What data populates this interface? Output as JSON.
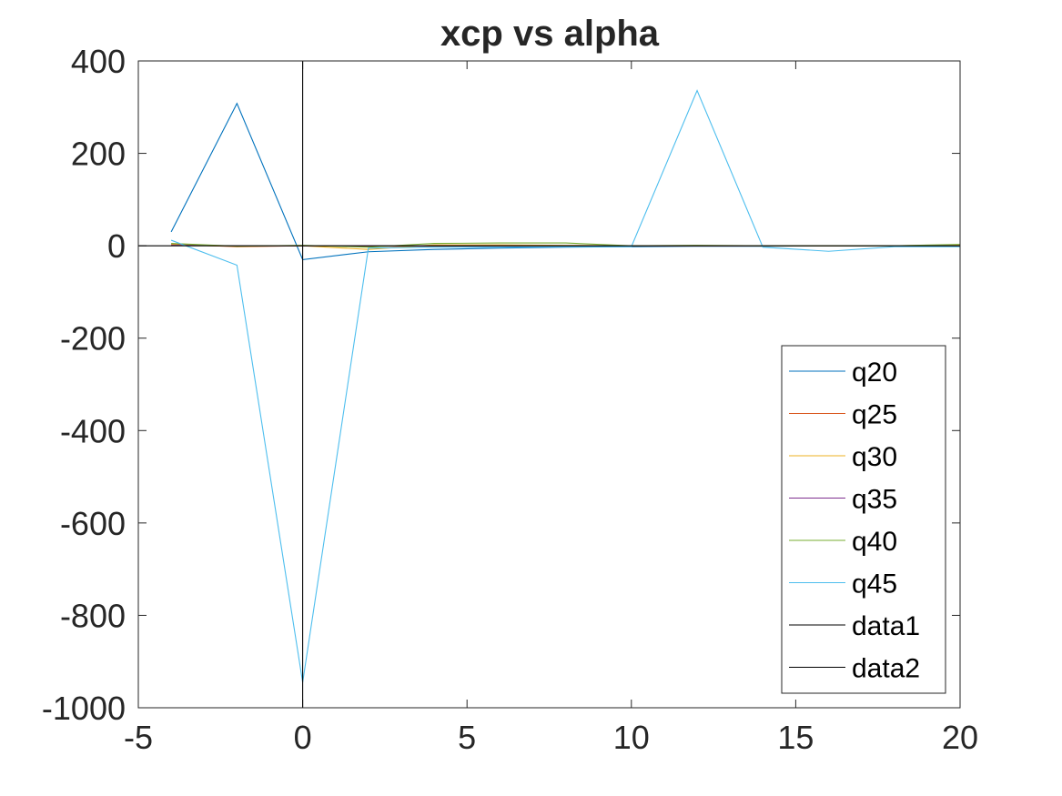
{
  "chart_data": {
    "type": "line",
    "title": "xcp vs alpha",
    "xlabel": "",
    "ylabel": "",
    "xlim": [
      -5,
      20
    ],
    "ylim": [
      -1000,
      400
    ],
    "xticks": [
      -5,
      0,
      5,
      10,
      15,
      20
    ],
    "xtick_labels": [
      "-5",
      "0",
      "5",
      "10",
      "15",
      "20"
    ],
    "yticks": [
      400,
      200,
      0,
      -200,
      -400,
      -600,
      -800,
      -1000
    ],
    "ytick_labels": [
      "400",
      "200",
      "0",
      "-200",
      "-400",
      "-600",
      "-800",
      "-1000"
    ],
    "grid": false,
    "legend_position": "bottom-right",
    "series": [
      {
        "name": "q20",
        "color": "#0072BD",
        "x": [
          -4,
          -2,
          0,
          2,
          4,
          6,
          8,
          10,
          12,
          14,
          16,
          18,
          20
        ],
        "y": [
          30,
          308,
          -30,
          -13,
          -8,
          -5,
          -3,
          -2,
          -1,
          -1,
          0,
          0,
          0
        ]
      },
      {
        "name": "q25",
        "color": "#D95319",
        "x": [
          -4,
          -2,
          0,
          2,
          4,
          6,
          8,
          10,
          12,
          14,
          16,
          18,
          20
        ],
        "y": [
          3,
          -2,
          0,
          -1,
          -1,
          0,
          0,
          0,
          0,
          0,
          0,
          0,
          0
        ]
      },
      {
        "name": "q30",
        "color": "#EDB120",
        "x": [
          -4,
          -2,
          0,
          2,
          4,
          6,
          8,
          10,
          12,
          14,
          16,
          18,
          20
        ],
        "y": [
          2,
          -1,
          0,
          -8,
          2,
          2,
          1,
          0,
          0,
          0,
          0,
          0,
          2
        ]
      },
      {
        "name": "q35",
        "color": "#7E2F8E",
        "x": [
          -4,
          -2,
          0,
          2,
          4,
          6,
          8,
          10,
          12,
          14,
          16,
          18,
          20
        ],
        "y": [
          1,
          0,
          0,
          0,
          0,
          0,
          0,
          0,
          0,
          0,
          0,
          0,
          0
        ]
      },
      {
        "name": "q40",
        "color": "#77AC30",
        "x": [
          -4,
          -2,
          0,
          2,
          4,
          6,
          8,
          10,
          12,
          14,
          16,
          18,
          20
        ],
        "y": [
          5,
          -1,
          1,
          -3,
          5,
          6,
          6,
          0,
          1,
          0,
          0,
          0,
          3
        ]
      },
      {
        "name": "q45",
        "color": "#4DBEEE",
        "x": [
          -4,
          -2,
          0,
          2,
          4,
          6,
          8,
          10,
          12,
          14,
          16,
          18,
          20
        ],
        "y": [
          12,
          -42,
          -945,
          -5,
          -3,
          -3,
          -2,
          -2,
          336,
          -3,
          -12,
          -2,
          -2
        ]
      },
      {
        "name": "data1",
        "color": "#000000",
        "x": [
          -5,
          20
        ],
        "y": [
          0,
          0
        ]
      },
      {
        "name": "data2",
        "color": "#000000",
        "x": [
          0,
          0
        ],
        "y": [
          -1000,
          400
        ]
      }
    ]
  }
}
